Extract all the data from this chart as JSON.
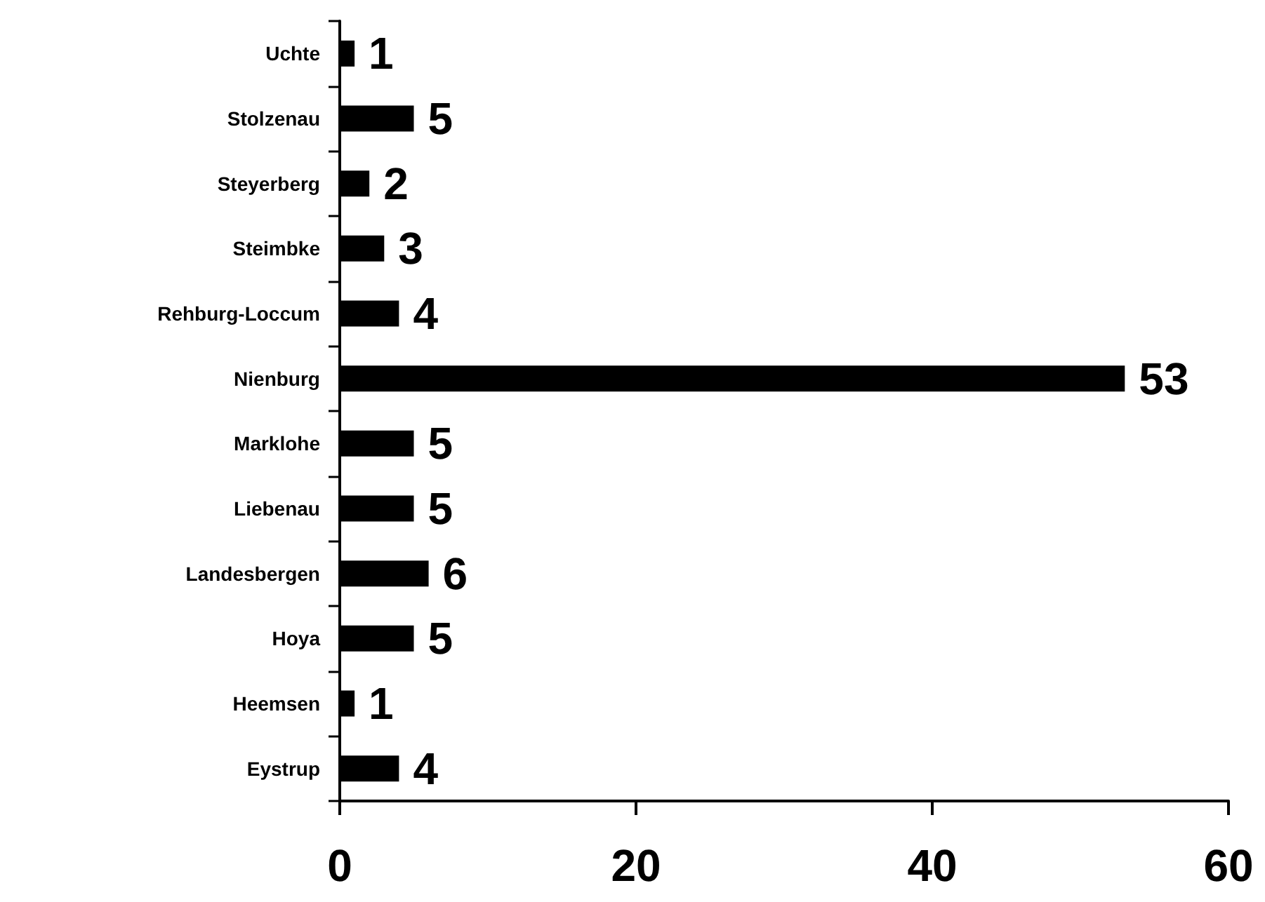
{
  "chart_data": {
    "type": "bar",
    "orientation": "horizontal",
    "categories": [
      "Uchte",
      "Stolzenau",
      "Steyerberg",
      "Steimbke",
      "Rehburg-Loccum",
      "Nienburg",
      "Marklohe",
      "Liebenau",
      "Landesbergen",
      "Hoya",
      "Heemsen",
      "Eystrup"
    ],
    "values": [
      1,
      5,
      2,
      3,
      4,
      53,
      5,
      5,
      6,
      5,
      1,
      4
    ],
    "color": "#000000",
    "xlim": [
      0,
      60
    ],
    "xticks": [
      0,
      20,
      40,
      60
    ],
    "data_labels": true
  }
}
